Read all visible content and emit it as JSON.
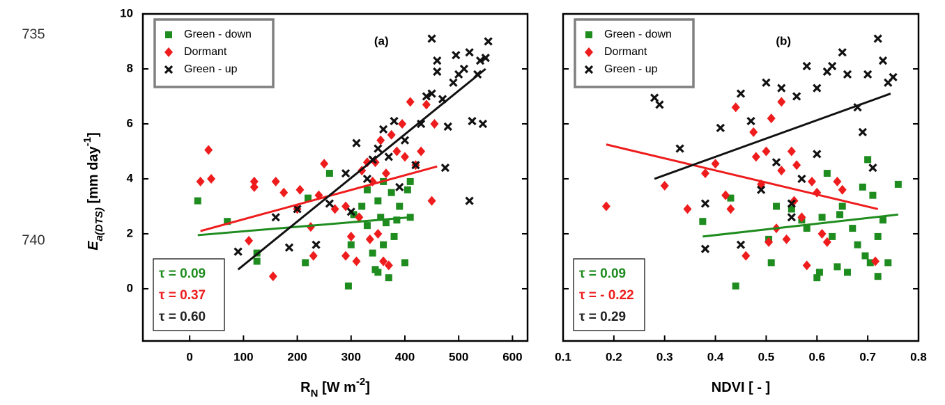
{
  "line_numbers": [
    "735",
    "740"
  ],
  "chart_data": [
    {
      "type": "scatter",
      "panel_label": "(a)",
      "legend": "upper left",
      "xlim": [
        -87,
        628
      ],
      "ylim": [
        -1.9,
        10
      ],
      "xticks": [
        0,
        100,
        200,
        300,
        400,
        500,
        600
      ],
      "yticks": [
        0,
        2,
        4,
        6,
        8,
        10
      ],
      "xlabel": [
        {
          "text": "R"
        },
        {
          "text": "N",
          "sub": true
        },
        {
          "text": " [W m"
        },
        {
          "text": "-2",
          "sup": true
        },
        {
          "text": "]"
        }
      ],
      "ylabel": [
        {
          "text": "E",
          "italic": true
        },
        {
          "text": "a(DTS)",
          "sub": true,
          "italic": true
        },
        {
          "text": " [mm day"
        },
        {
          "text": "-1",
          "sup": true
        },
        {
          "text": "]"
        }
      ],
      "annotations": [
        {
          "text": "τ = 0.09",
          "color": "#1e8c1e"
        },
        {
          "text": "τ = 0.37",
          "color": "#ee1c1c"
        },
        {
          "text": "τ = 0.60",
          "color": "#222222"
        }
      ],
      "series": [
        {
          "name": "Green - down",
          "color": "#1e8c1e",
          "marker": "square",
          "x": [
            15,
            70,
            125,
            125,
            215,
            220,
            260,
            295,
            300,
            305,
            320,
            330,
            330,
            340,
            345,
            350,
            350,
            355,
            360,
            360,
            365,
            370,
            375,
            380,
            385,
            390,
            400,
            405,
            410,
            410
          ],
          "y": [
            3.2,
            2.45,
            1.0,
            1.3,
            0.95,
            3.3,
            4.2,
            0.1,
            1.6,
            2.7,
            3.0,
            2.3,
            3.6,
            1.3,
            0.7,
            0.6,
            3.2,
            2.6,
            1.6,
            3.9,
            2.4,
            0.4,
            3.5,
            1.9,
            2.5,
            3.0,
            0.95,
            3.6,
            3.9,
            2.6
          ],
          "fit": {
            "x": [
              15,
              410
            ],
            "y": [
              1.95,
              2.6
            ]
          }
        },
        {
          "name": "Dormant",
          "color": "#ee1c1c",
          "marker": "diamond",
          "x": [
            20,
            35,
            40,
            110,
            120,
            120,
            155,
            160,
            175,
            200,
            205,
            225,
            230,
            240,
            250,
            270,
            290,
            290,
            300,
            310,
            315,
            320,
            330,
            335,
            340,
            345,
            350,
            355,
            360,
            365,
            370,
            375,
            385,
            395,
            400,
            410,
            420,
            430,
            440,
            450,
            455
          ],
          "y": [
            3.9,
            5.05,
            4.0,
            1.75,
            3.9,
            3.7,
            0.45,
            3.9,
            3.5,
            2.9,
            3.6,
            2.25,
            1.2,
            3.4,
            4.55,
            2.9,
            1.2,
            3.0,
            1.9,
            1.0,
            2.6,
            4.3,
            4.6,
            1.8,
            3.9,
            4.6,
            2.0,
            5.4,
            1.0,
            4.2,
            0.85,
            5.6,
            5.0,
            6.0,
            4.8,
            6.8,
            4.5,
            5.0,
            6.7,
            3.2,
            6.0
          ],
          "fit": {
            "x": [
              20,
              460
            ],
            "y": [
              2.1,
              4.45
            ]
          }
        },
        {
          "name": "Green - up",
          "color": "#111111",
          "marker": "cross",
          "x": [
            90,
            160,
            185,
            200,
            235,
            260,
            290,
            300,
            310,
            330,
            340,
            350,
            360,
            370,
            380,
            390,
            400,
            420,
            430,
            440,
            450,
            460,
            470,
            480,
            490,
            495,
            500,
            510,
            520,
            520,
            525,
            535,
            540,
            545,
            550,
            555,
            450,
            460,
            475
          ],
          "y": [
            1.35,
            2.6,
            1.5,
            2.9,
            1.6,
            3.1,
            4.2,
            2.8,
            5.3,
            4.0,
            4.7,
            5.1,
            5.8,
            4.8,
            6.1,
            3.7,
            5.4,
            4.5,
            6.0,
            7.0,
            7.1,
            8.3,
            6.9,
            5.9,
            7.5,
            8.5,
            7.8,
            8.0,
            8.6,
            3.2,
            6.1,
            7.8,
            8.3,
            6.0,
            8.4,
            9.0,
            9.1,
            7.9,
            4.4
          ],
          "fit": {
            "x": [
              90,
              550
            ],
            "y": [
              0.7,
              8.0
            ]
          }
        }
      ]
    },
    {
      "type": "scatter",
      "panel_label": "(b)",
      "legend": "upper left",
      "xlim": [
        0.1,
        0.8
      ],
      "ylim": [
        -1.9,
        10
      ],
      "xticks": [
        0.1,
        0.2,
        0.3,
        0.4,
        0.5,
        0.6,
        0.7,
        0.8
      ],
      "yticks": [
        0,
        2,
        4,
        6,
        8,
        10
      ],
      "xlabel": [
        {
          "text": "NDVI [ - ]"
        }
      ],
      "annotations": [
        {
          "text": "τ = 0.09",
          "color": "#1e8c1e"
        },
        {
          "text": "τ = - 0.22",
          "color": "#ee1c1c"
        },
        {
          "text": "τ = 0.29",
          "color": "#222222"
        }
      ],
      "series": [
        {
          "name": "Green - down",
          "color": "#1e8c1e",
          "marker": "square",
          "x": [
            0.375,
            0.43,
            0.44,
            0.505,
            0.51,
            0.52,
            0.55,
            0.57,
            0.58,
            0.6,
            0.605,
            0.61,
            0.62,
            0.63,
            0.64,
            0.645,
            0.65,
            0.66,
            0.67,
            0.68,
            0.69,
            0.695,
            0.7,
            0.705,
            0.71,
            0.72,
            0.72,
            0.73,
            0.74,
            0.76
          ],
          "y": [
            2.45,
            3.3,
            0.1,
            1.8,
            0.95,
            3.0,
            2.9,
            2.5,
            2.2,
            0.4,
            0.6,
            2.6,
            4.2,
            1.9,
            0.8,
            2.7,
            3.0,
            0.6,
            2.2,
            1.6,
            3.7,
            1.2,
            4.7,
            0.95,
            3.4,
            1.9,
            0.45,
            2.5,
            0.95,
            3.8
          ],
          "fit": {
            "x": [
              0.375,
              0.76
            ],
            "y": [
              1.9,
              2.7
            ]
          }
        },
        {
          "name": "Dormant",
          "color": "#ee1c1c",
          "marker": "diamond",
          "x": [
            0.185,
            0.3,
            0.345,
            0.38,
            0.4,
            0.42,
            0.43,
            0.44,
            0.46,
            0.475,
            0.49,
            0.5,
            0.505,
            0.51,
            0.52,
            0.53,
            0.54,
            0.55,
            0.555,
            0.56,
            0.57,
            0.58,
            0.59,
            0.6,
            0.61,
            0.62,
            0.64,
            0.65,
            0.715,
            0.53,
            0.48
          ],
          "y": [
            3.0,
            3.75,
            2.9,
            4.2,
            4.55,
            3.4,
            2.9,
            6.6,
            1.2,
            5.7,
            3.8,
            5.0,
            1.7,
            6.2,
            2.2,
            4.3,
            1.8,
            5.0,
            3.2,
            4.5,
            2.6,
            0.85,
            3.9,
            3.5,
            2.0,
            1.7,
            3.9,
            3.6,
            1.0,
            6.8,
            4.8
          ],
          "fit": {
            "x": [
              0.185,
              0.72
            ],
            "y": [
              5.25,
              2.9
            ]
          }
        },
        {
          "name": "Green - up",
          "color": "#111111",
          "marker": "cross",
          "x": [
            0.28,
            0.29,
            0.33,
            0.38,
            0.38,
            0.41,
            0.45,
            0.45,
            0.47,
            0.49,
            0.5,
            0.52,
            0.53,
            0.55,
            0.56,
            0.57,
            0.58,
            0.6,
            0.62,
            0.63,
            0.65,
            0.66,
            0.68,
            0.69,
            0.7,
            0.71,
            0.72,
            0.73,
            0.74,
            0.75,
            0.6,
            0.55
          ],
          "y": [
            6.95,
            6.7,
            5.1,
            1.45,
            3.1,
            5.85,
            1.6,
            7.1,
            6.1,
            3.6,
            7.5,
            4.6,
            7.3,
            3.1,
            7.0,
            4.0,
            8.1,
            7.3,
            7.9,
            8.1,
            8.6,
            7.8,
            6.6,
            5.7,
            7.8,
            4.4,
            9.1,
            8.3,
            7.5,
            7.7,
            4.9,
            2.6
          ],
          "fit": {
            "x": [
              0.28,
              0.745
            ],
            "y": [
              4.0,
              7.1
            ]
          }
        }
      ]
    }
  ]
}
